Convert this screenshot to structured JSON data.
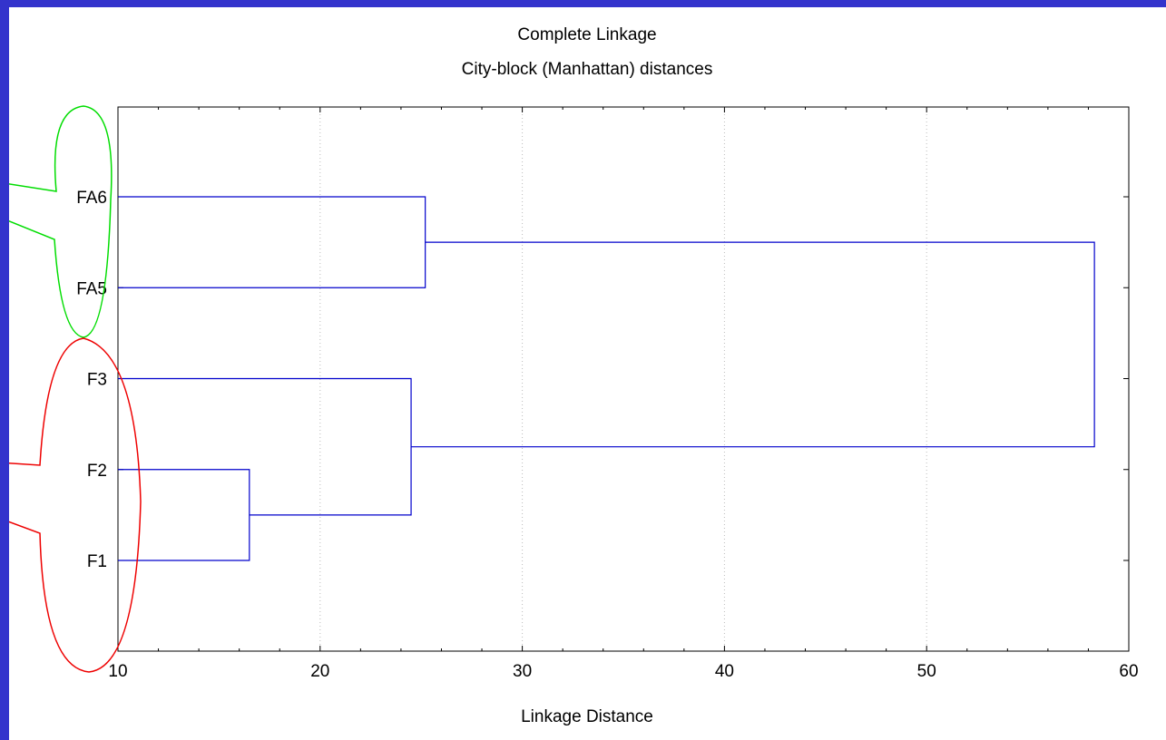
{
  "chart_data": {
    "type": "dendrogram",
    "title": "Complete Linkage",
    "subtitle": "City-block (Manhattan) distances",
    "xlabel": "Linkage Distance",
    "xlim": [
      10,
      60
    ],
    "xticks": [
      10,
      20,
      30,
      40,
      50,
      60
    ],
    "leaves": [
      "FA6",
      "FA5",
      "F3",
      "F2",
      "F1"
    ],
    "merges": [
      {
        "left": "F2",
        "right": "F1",
        "distance": 16.5
      },
      {
        "left": "F3",
        "right": "F2+F1",
        "distance": 24.5
      },
      {
        "left": "FA6",
        "right": "FA5",
        "distance": 25.2
      },
      {
        "left": "FA6+FA5",
        "right": "F3+F2+F1",
        "distance": 58.3
      }
    ],
    "highlight_groups": [
      {
        "members": [
          "FA6",
          "FA5"
        ],
        "color": "#00dd00"
      },
      {
        "members": [
          "F3",
          "F2",
          "F1"
        ],
        "color": "#ee0000"
      }
    ],
    "line_color": "#0000cc",
    "background": "#3333cc"
  }
}
